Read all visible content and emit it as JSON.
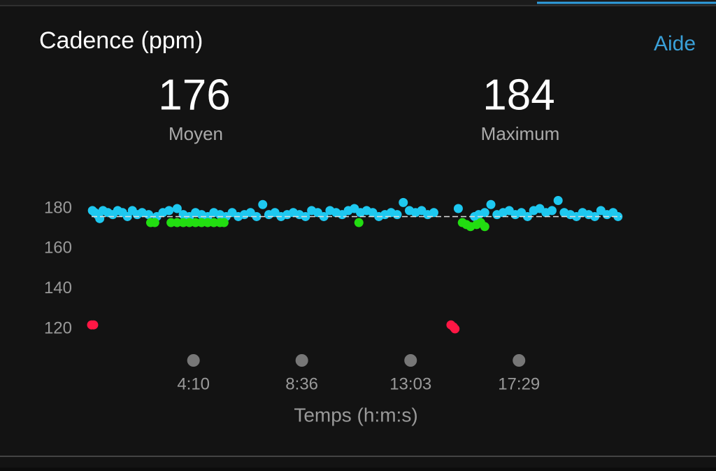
{
  "help": "Aide",
  "stats": [
    {
      "value": 176,
      "label": "Moyen"
    },
    {
      "value": 184,
      "label": "Maximum"
    }
  ],
  "chart_data": {
    "type": "scatter",
    "title": "Cadence (ppm)",
    "x_label": "Temps (h:m:s)",
    "xlim": [
      0,
      1300
    ],
    "ylim": [
      116,
      186
    ],
    "xticks": [
      {
        "value": 250,
        "label": "4:10"
      },
      {
        "value": 516,
        "label": "8:36"
      },
      {
        "value": 783,
        "label": "13:03"
      },
      {
        "value": 1049,
        "label": "17:29"
      }
    ],
    "yticks": [
      120,
      140,
      160,
      180
    ],
    "series": [
      {
        "color": "#1ec8f0",
        "x": [
          2,
          8,
          14,
          20,
          28,
          40,
          52,
          64,
          76,
          88,
          100,
          112,
          124,
          140,
          160,
          175,
          190,
          210,
          225,
          240,
          255,
          270,
          285,
          300,
          315,
          330,
          345,
          360,
          375,
          390,
          405,
          420,
          435,
          450,
          465,
          480,
          495,
          510,
          525,
          540,
          555,
          570,
          585,
          600,
          615,
          630,
          645,
          660,
          675,
          690,
          705,
          720,
          735,
          750,
          765,
          780,
          795,
          810,
          825,
          840,
          900,
          940,
          950,
          965,
          980,
          995,
          1010,
          1025,
          1040,
          1055,
          1070,
          1085,
          1100,
          1115,
          1130,
          1145,
          1160,
          1175,
          1190,
          1205,
          1220,
          1235,
          1250,
          1265,
          1280,
          1292
        ],
        "values": [
          179,
          178,
          177,
          175,
          179,
          178,
          177,
          179,
          178,
          176,
          179,
          177,
          178,
          177,
          176,
          178,
          179,
          180,
          177,
          176,
          178,
          177,
          176,
          178,
          177,
          176,
          178,
          176,
          177,
          178,
          176,
          182,
          177,
          178,
          176,
          177,
          178,
          177,
          176,
          179,
          178,
          176,
          179,
          178,
          177,
          179,
          180,
          178,
          179,
          178,
          176,
          177,
          178,
          177,
          183,
          179,
          178,
          179,
          177,
          178,
          180,
          176,
          177,
          178,
          182,
          177,
          178,
          179,
          177,
          178,
          176,
          179,
          180,
          178,
          179,
          184,
          178,
          177,
          176,
          178,
          177,
          176,
          179,
          177,
          178,
          176
        ]
      },
      {
        "color": "#22dd11",
        "x": [
          145,
          155,
          195,
          210,
          225,
          240,
          255,
          270,
          285,
          300,
          315,
          325,
          656,
          910,
          920,
          930,
          945,
          955,
          965
        ],
        "values": [
          173,
          173,
          173,
          173,
          173,
          173,
          173,
          173,
          173,
          173,
          173,
          173,
          173,
          173,
          172,
          171,
          172,
          173,
          171
        ]
      },
      {
        "color": "#ff1744",
        "x": [
          0,
          5,
          882,
          888,
          892
        ],
        "values": [
          122,
          122,
          122,
          121,
          120
        ]
      }
    ]
  }
}
